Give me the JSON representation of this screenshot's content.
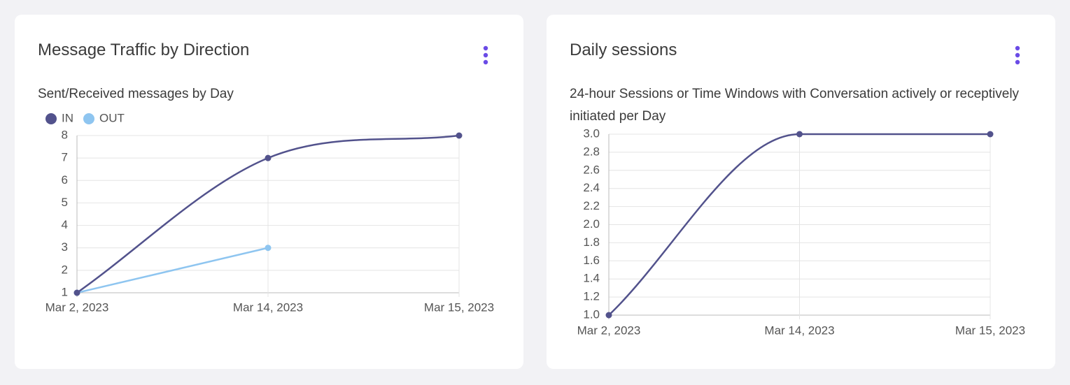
{
  "chart_data": [
    {
      "type": "line",
      "title": "Message Traffic by Direction",
      "subtitle": "Sent/Received messages by Day",
      "categories": [
        "Mar 2, 2023",
        "Mar 14, 2023",
        "Mar 15, 2023"
      ],
      "series": [
        {
          "name": "IN",
          "color": "#52528c",
          "values": [
            1,
            7,
            8
          ]
        },
        {
          "name": "OUT",
          "color": "#8ec5f0",
          "values": [
            1,
            3,
            null
          ]
        }
      ],
      "ylim": [
        1,
        8
      ],
      "yticks": [
        1,
        2,
        3,
        4,
        5,
        6,
        7,
        8
      ],
      "grid": true,
      "legend": "top-left"
    },
    {
      "type": "line",
      "title": "Daily sessions",
      "subtitle": "24-hour Sessions or Time Windows with Conversation actively or receptively initiated per Day",
      "categories": [
        "Mar 2, 2023",
        "Mar 14, 2023",
        "Mar 15, 2023"
      ],
      "values": [
        1,
        3,
        3
      ],
      "color": "#52528c",
      "ylim": [
        1,
        3
      ],
      "yticks": [
        {
          "value": 1,
          "label": "1.0"
        },
        1.2,
        1.4,
        1.6,
        1.8,
        {
          "value": 2,
          "label": "2.0"
        },
        2.2,
        2.4,
        2.6,
        2.8,
        {
          "value": 3,
          "label": "3.0"
        }
      ],
      "grid": true
    }
  ]
}
